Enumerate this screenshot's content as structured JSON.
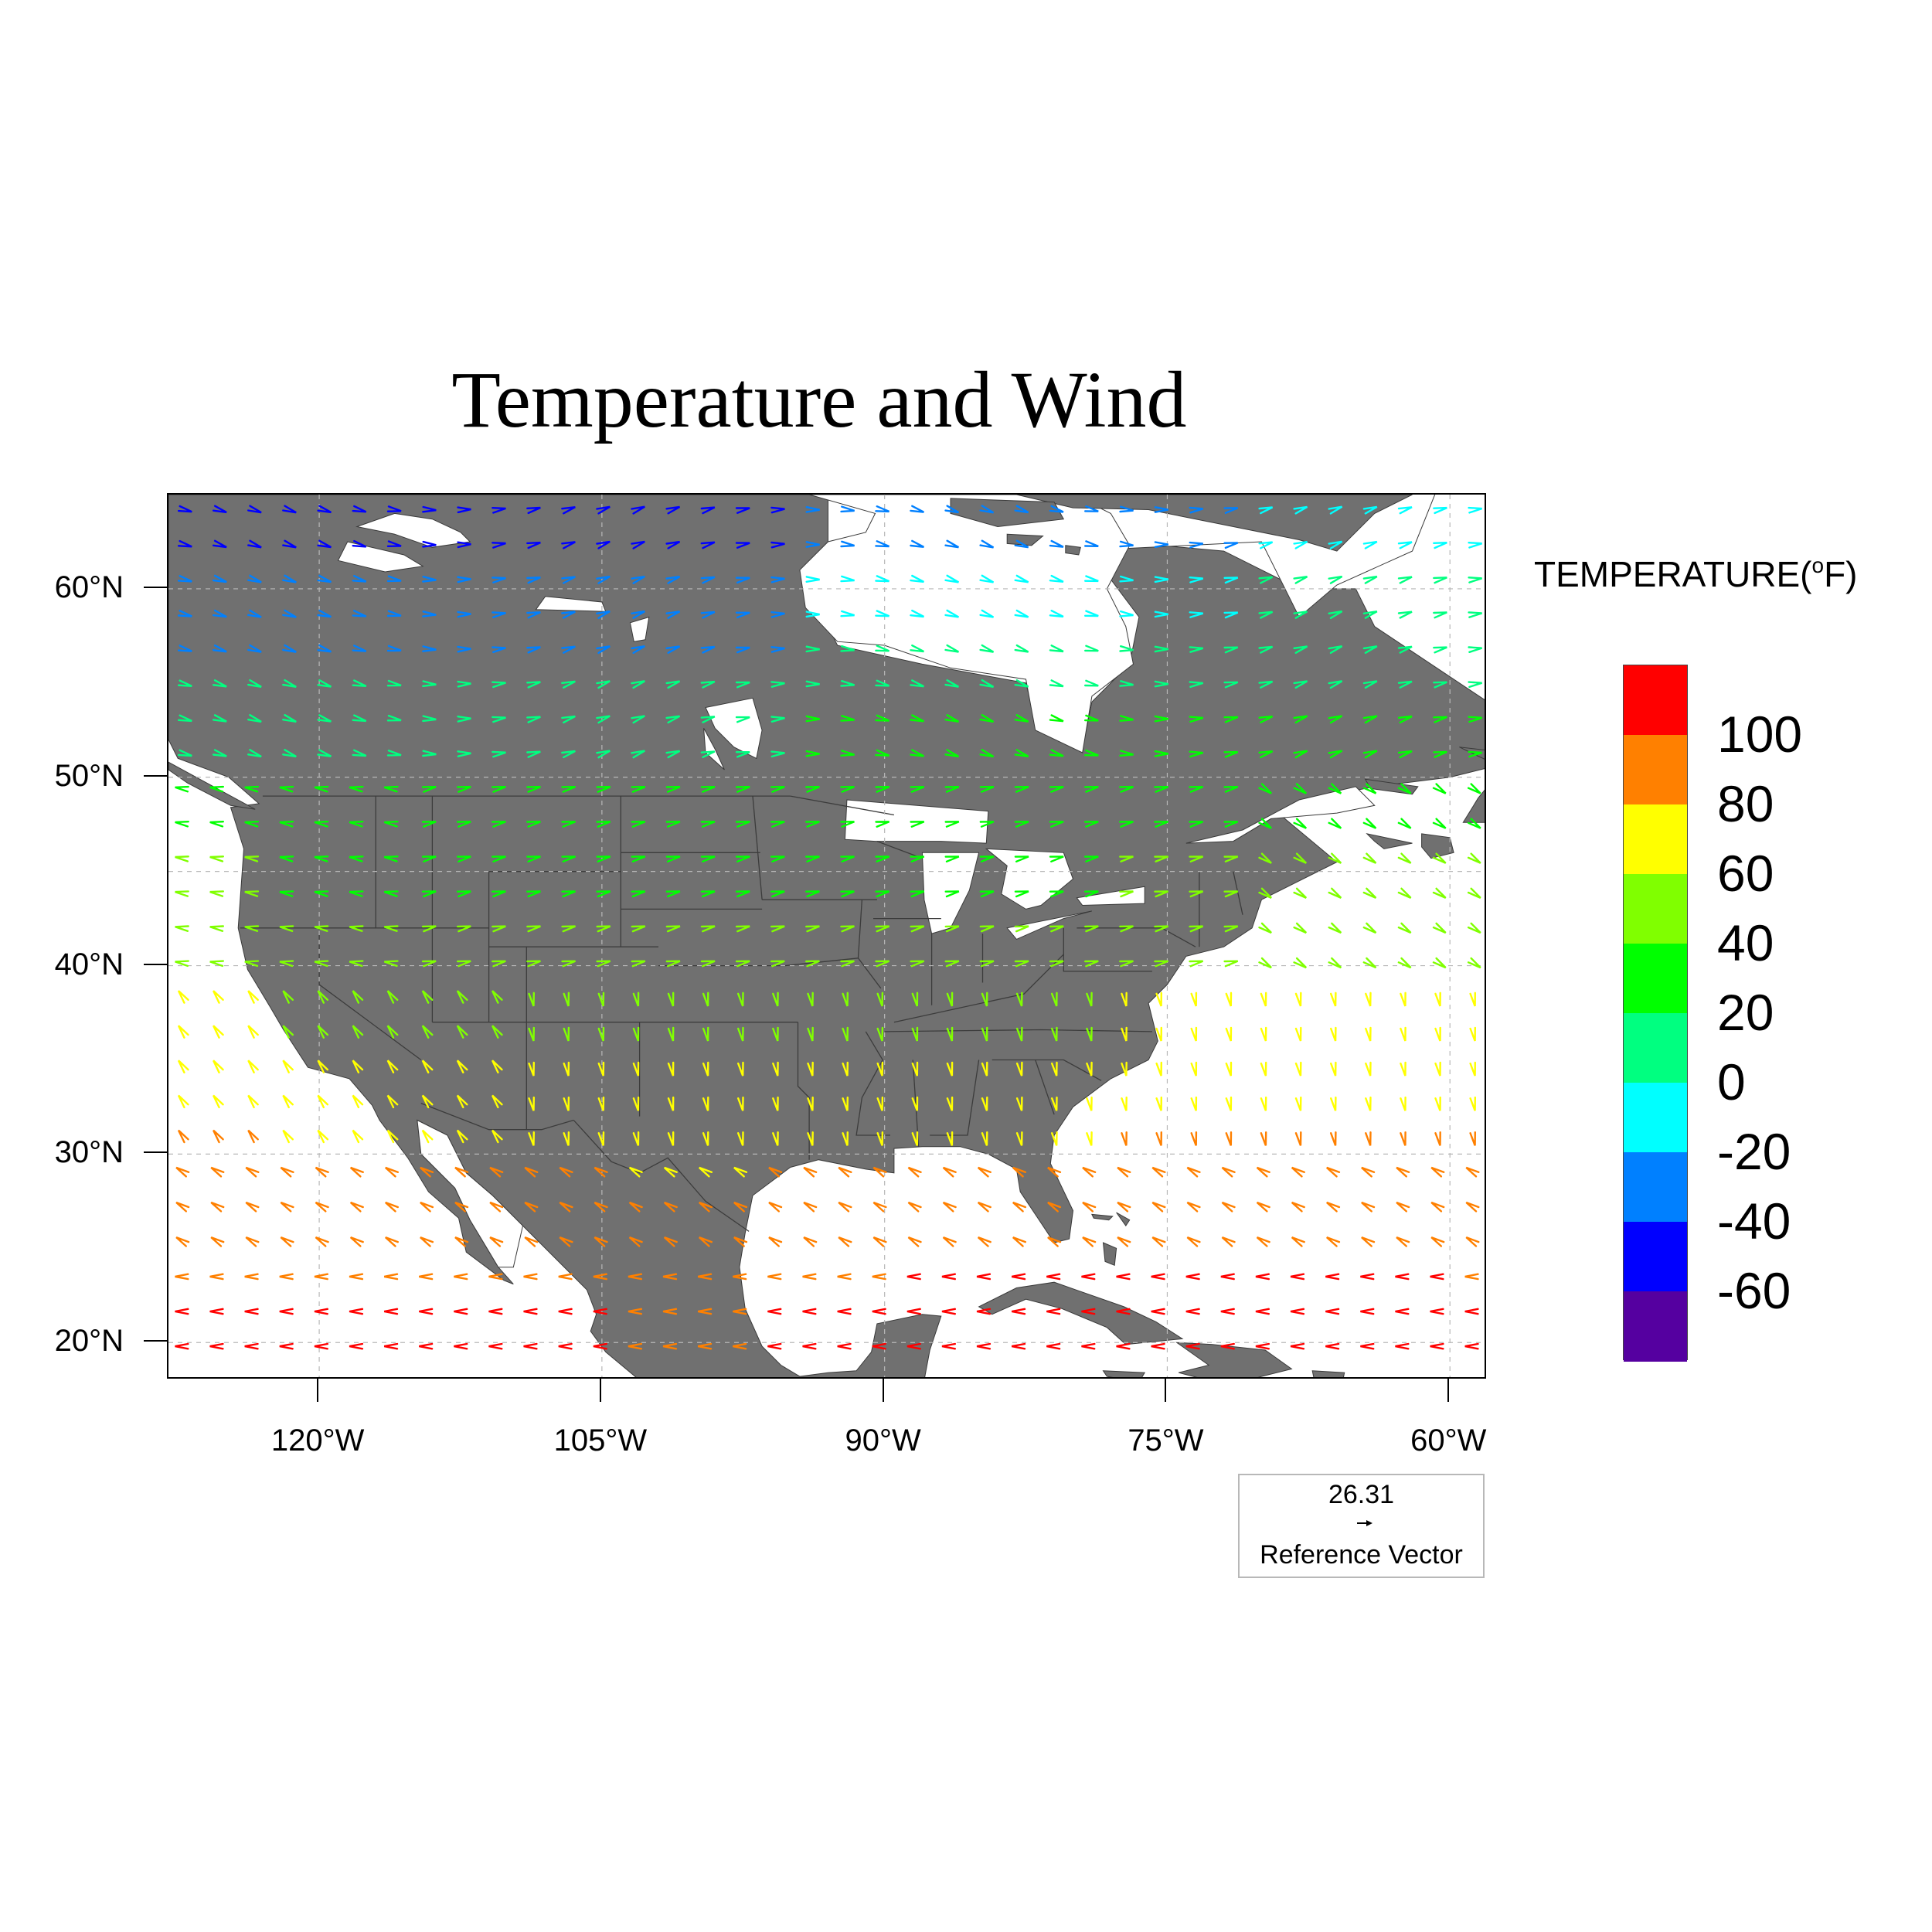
{
  "title": "Temperature and Wind",
  "map": {
    "lon_range": [
      -128,
      -58
    ],
    "lat_range": [
      18,
      65
    ],
    "projection": "cylindrical-equidistant",
    "land_color": "#707070",
    "ocean_color": "#ffffff",
    "grid": true,
    "lat_ticks": [
      {
        "value": 60,
        "label": "60°N"
      },
      {
        "value": 50,
        "label": "50°N"
      },
      {
        "value": 40,
        "label": "40°N"
      },
      {
        "value": 30,
        "label": "30°N"
      },
      {
        "value": 20,
        "label": "20°N"
      }
    ],
    "lon_ticks": [
      {
        "value": -120,
        "label": "120°W"
      },
      {
        "value": -105,
        "label": "105°W"
      },
      {
        "value": -90,
        "label": "90°W"
      },
      {
        "value": -75,
        "label": "75°W"
      },
      {
        "value": -60,
        "label": "60°W"
      }
    ]
  },
  "legend": {
    "title": "TEMPERATURE(",
    "unit_sup": "o",
    "unit_tail": "F)",
    "labels": [
      "100",
      "80",
      "60",
      "40",
      "20",
      "0",
      "-20",
      "-40",
      "-60"
    ],
    "colors": [
      "#ff0000",
      "#ff8000",
      "#ffff00",
      "#80ff00",
      "#00ff00",
      "#00ff80",
      "#00ffff",
      "#0080ff",
      "#0000ff",
      "#5500a0"
    ]
  },
  "reference_vector": {
    "value": "26.31",
    "label": "Reference Vector"
  }
}
